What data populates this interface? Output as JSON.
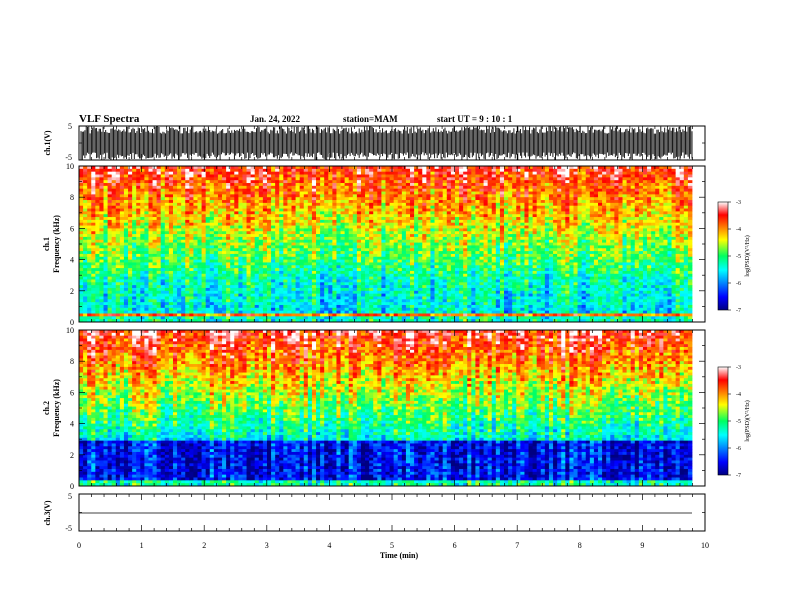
{
  "header": {
    "title": "VLF Spectra",
    "date": "Jan. 24, 2022",
    "station": "station=MAM",
    "start": "start UT =  9 : 10 : 1"
  },
  "chart_data": [
    {
      "type": "line",
      "ylabel": "ch.1(V)",
      "ylim": [
        -5,
        5
      ],
      "yticks": [
        "5",
        "-5"
      ],
      "xlim": [
        0,
        10
      ]
    },
    {
      "type": "heatmap",
      "ylabel_line1": "ch.1",
      "ylabel_line2": "Frequency (kHz)",
      "ylim": [
        0,
        10
      ],
      "yticks": [
        "0",
        "2",
        "4",
        "6",
        "8",
        "10"
      ],
      "xlim": [
        0,
        10
      ],
      "colorbar": {
        "label": "log(PSD)(V²/Hz)",
        "range": [
          -7,
          -3
        ],
        "ticks": [
          "-3",
          "-4",
          "-5",
          "-6",
          "-7"
        ]
      }
    },
    {
      "type": "heatmap",
      "ylabel_line1": "ch.2",
      "ylabel_line2": "Frequency (kHz)",
      "ylim": [
        0,
        10
      ],
      "yticks": [
        "0",
        "2",
        "4",
        "6",
        "8",
        "10"
      ],
      "xlim": [
        0,
        10
      ],
      "colorbar": {
        "label": "log(PSD)(V²/Hz)",
        "range": [
          -7,
          -3
        ],
        "ticks": [
          "-3",
          "-4",
          "-5",
          "-6",
          "-7"
        ]
      }
    },
    {
      "type": "line",
      "ylabel": "ch.3(V)",
      "ylim": [
        -5,
        5
      ],
      "yticks": [
        "5",
        "-5"
      ],
      "xlim": [
        0,
        10
      ],
      "xlabel": "Time (min)",
      "xticks": [
        "0",
        "1",
        "2",
        "3",
        "4",
        "5",
        "6",
        "7",
        "8",
        "9",
        "10"
      ]
    }
  ],
  "colors": {
    "low": "#00007f",
    "mid": "#00ff80",
    "high": "#ff0000"
  }
}
